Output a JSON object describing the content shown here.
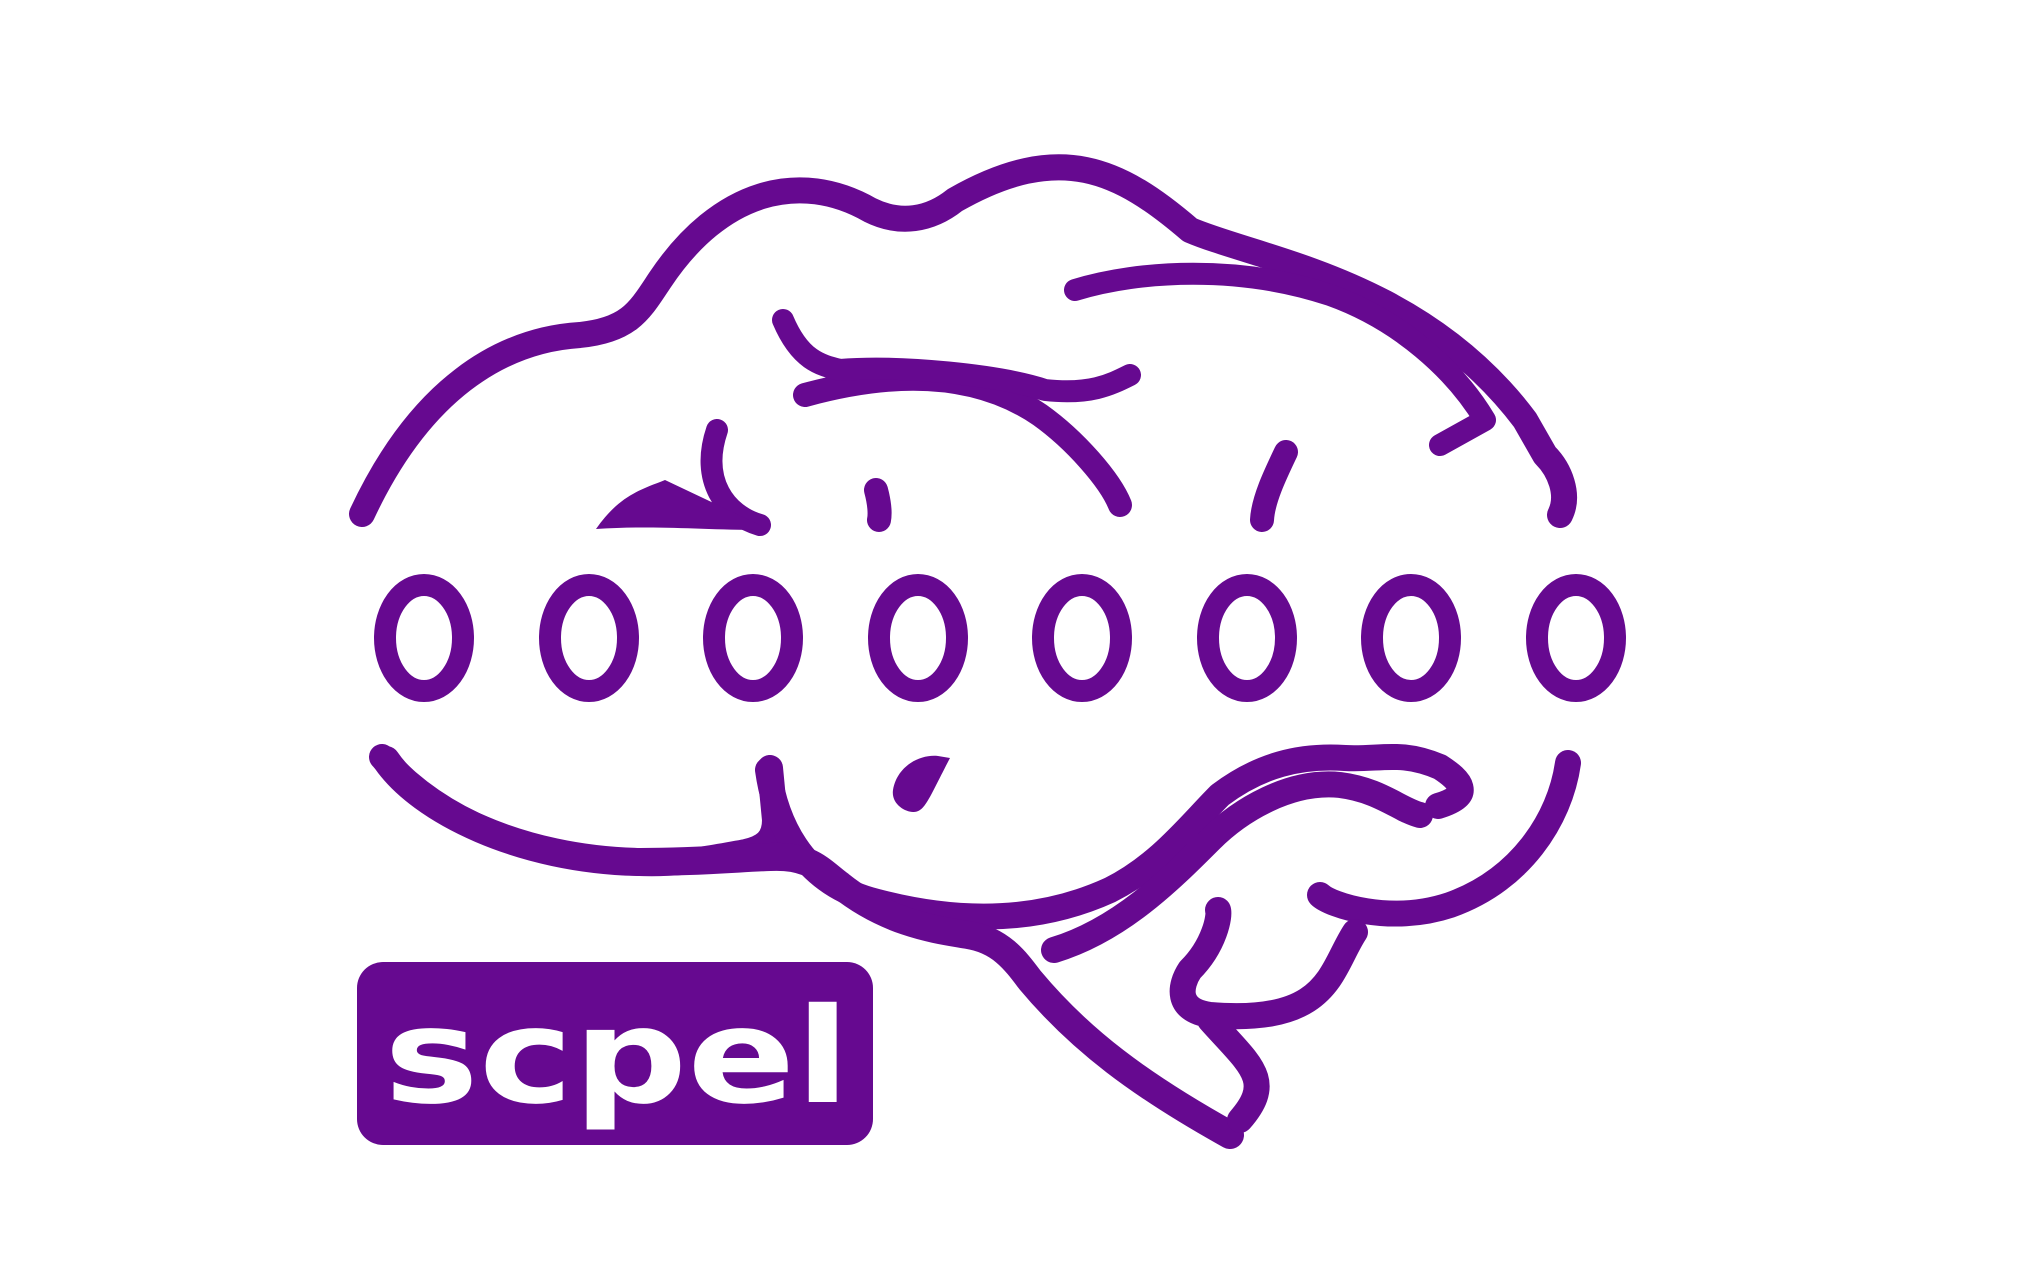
{
  "brand": {
    "name": "scpel",
    "color": "#660990",
    "background": "#ffffff"
  },
  "digits": [
    "0",
    "0",
    "0",
    "0",
    "0",
    "0",
    "0",
    "0"
  ],
  "icons": [
    "brain-icon",
    "hand-icon"
  ]
}
